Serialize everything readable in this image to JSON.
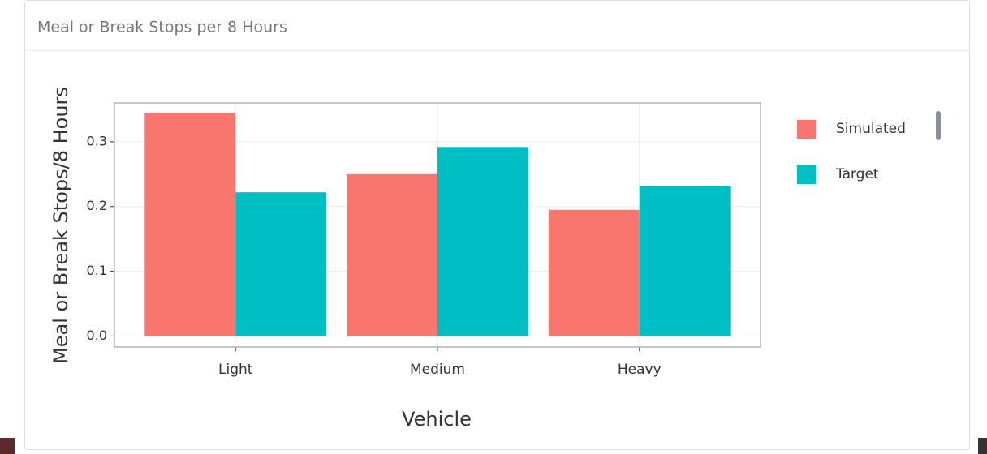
{
  "panel_title": "Meal or Break Stops per 8 Hours",
  "chart_data": {
    "type": "bar",
    "categories": [
      "Light",
      "Medium",
      "Heavy"
    ],
    "series": [
      {
        "name": "Simulated",
        "color": "#f8766d",
        "values": [
          0.345,
          0.25,
          0.195
        ]
      },
      {
        "name": "Target",
        "color": "#00bfc4",
        "values": [
          0.222,
          0.292,
          0.231
        ]
      }
    ],
    "ylim": [
      -0.017,
      0.36
    ],
    "yticks": [
      {
        "value": 0,
        "label": "0.0"
      },
      0.1,
      0.2,
      0.3
    ],
    "x_label": "Vehicle",
    "y_label": "Meal or Break Stops/8 Hours",
    "grid": true,
    "legend": "right"
  }
}
